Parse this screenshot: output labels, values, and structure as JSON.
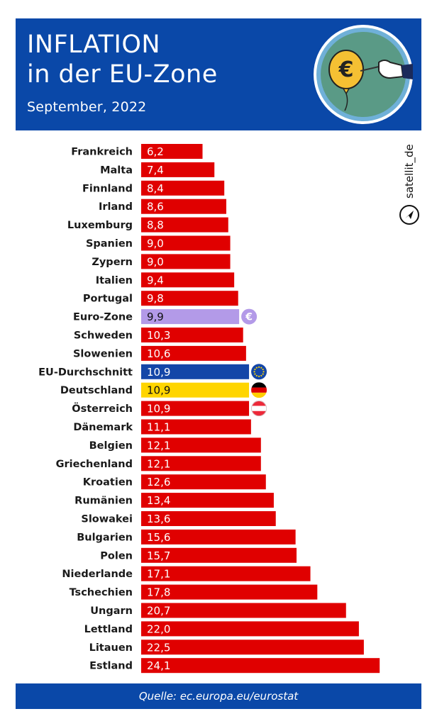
{
  "header": {
    "title_line1": "INFLATION",
    "title_line2": "in der EU-Zone",
    "subtitle": "September, 2022"
  },
  "brand": "satellit_de",
  "footer": {
    "source": "Quelle: ec.europa.eu/eurostat"
  },
  "chart_data": {
    "type": "bar",
    "orientation": "horizontal",
    "categories": [
      "Frankreich",
      "Malta",
      "Finnland",
      "Irland",
      "Luxemburg",
      "Spanien",
      "Zypern",
      "Italien",
      "Portugal",
      "Euro-Zone",
      "Schweden",
      "Slowenien",
      "EU-Durchschnitt",
      "Deutschland",
      "Österreich",
      "Dänemark",
      "Belgien",
      "Griechenland",
      "Kroatien",
      "Rumänien",
      "Slowakei",
      "Bulgarien",
      "Polen",
      "Niederlande",
      "Tschechien",
      "Ungarn",
      "Lettland",
      "Litauen",
      "Estland"
    ],
    "values": [
      6.2,
      7.4,
      8.4,
      8.6,
      8.8,
      9.0,
      9.0,
      9.4,
      9.8,
      9.9,
      10.3,
      10.6,
      10.9,
      10.9,
      10.9,
      11.1,
      12.1,
      12.1,
      12.6,
      13.4,
      13.6,
      15.6,
      15.7,
      17.1,
      17.8,
      20.7,
      22.0,
      22.5,
      24.1
    ],
    "value_labels": [
      "6,2",
      "7,4",
      "8,4",
      "8,6",
      "8,8",
      "9,0",
      "9,0",
      "9,4",
      "9,8",
      "9,9",
      "10,3",
      "10,6",
      "10,9",
      "10,9",
      "10,9",
      "11,1",
      "12,1",
      "12,1",
      "12,6",
      "13,4",
      "13,6",
      "15,6",
      "15,7",
      "17,1",
      "17,8",
      "20,7",
      "22,0",
      "22,5",
      "24,1"
    ],
    "bar_colors": {
      "default": "#e00000",
      "Euro-Zone": "#b39ae8",
      "EU-Durchschnitt": "#1446a8",
      "Deutschland": "#ffd500"
    },
    "markers": {
      "Euro-Zone": "euro-circle-icon",
      "EU-Durchschnitt": "eu-flag-icon",
      "Deutschland": "germany-flag-icon",
      "Österreich": "austria-flag-icon"
    },
    "grid": false,
    "legend": "none"
  }
}
